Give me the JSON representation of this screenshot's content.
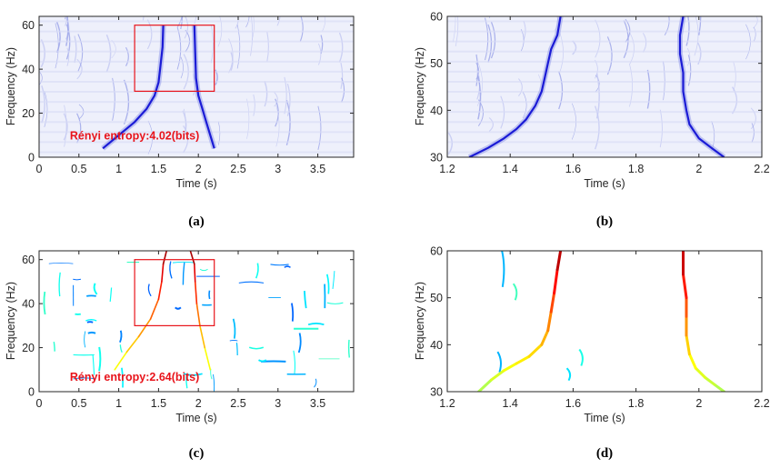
{
  "figure": {
    "captions": [
      "(a)",
      "(b)",
      "(c)",
      "(d)"
    ]
  },
  "colors": {
    "axis": "#262626",
    "highlight_box": "#e8141b",
    "annotation_text": "#e8141b",
    "ridge_blue": "#1b1bd6",
    "spectrogram_light": "#e4e7fa"
  },
  "chart_data": [
    {
      "id": "a",
      "type": "heatmap",
      "xlabel": "Time (s)",
      "ylabel": "Frequency (Hz)",
      "xlim": [
        0,
        3.95
      ],
      "ylim": [
        0,
        64
      ],
      "xticks": [
        0,
        0.5,
        1,
        1.5,
        2,
        2.5,
        3,
        3.5
      ],
      "xtick_labels": [
        "0",
        "0.5",
        "1",
        "1.5",
        "2",
        "2.5",
        "3",
        "3.5"
      ],
      "yticks": [
        0,
        20,
        40,
        60
      ],
      "ytick_labels": [
        "0",
        "20",
        "40",
        "60"
      ],
      "colormap": "white-to-blue",
      "highlight_box": {
        "x": [
          1.2,
          2.2
        ],
        "y": [
          30,
          60
        ]
      },
      "annotation": {
        "text": "Rényi entropy:4.02(bits)",
        "x": 1.2,
        "y": 8
      },
      "ridges": [
        {
          "x": [
            0.8,
            1.0,
            1.2,
            1.35,
            1.45,
            1.5,
            1.52,
            1.55,
            1.56
          ],
          "y": [
            4,
            10,
            16,
            22,
            28,
            34,
            40,
            50,
            60
          ]
        },
        {
          "x": [
            2.2,
            2.15,
            2.1,
            2.05,
            2.0,
            1.97,
            1.96,
            1.95
          ],
          "y": [
            4,
            10,
            16,
            22,
            28,
            36,
            48,
            60
          ]
        }
      ]
    },
    {
      "id": "b",
      "type": "heatmap",
      "xlabel": "Time (s)",
      "ylabel": "Frequency (Hz)",
      "xlim": [
        1.2,
        2.2
      ],
      "ylim": [
        30,
        60
      ],
      "xticks": [
        1.2,
        1.4,
        1.6,
        1.8,
        2,
        2.2
      ],
      "xtick_labels": [
        "1.2",
        "1.4",
        "1.6",
        "1.8",
        "2",
        "2.2"
      ],
      "yticks": [
        30,
        40,
        50,
        60
      ],
      "ytick_labels": [
        "30",
        "40",
        "50",
        "60"
      ],
      "colormap": "white-to-blue",
      "ridges": [
        {
          "x": [
            1.27,
            1.33,
            1.38,
            1.42,
            1.45,
            1.48,
            1.5,
            1.51,
            1.52,
            1.53,
            1.55,
            1.56
          ],
          "y": [
            30,
            32,
            34,
            36,
            38,
            41,
            44,
            47,
            50,
            53,
            56,
            60
          ]
        },
        {
          "x": [
            2.08,
            2.04,
            2.0,
            1.97,
            1.96,
            1.95,
            1.95,
            1.94,
            1.94,
            1.95
          ],
          "y": [
            30,
            32,
            34,
            37,
            40,
            44,
            48,
            52,
            56,
            60
          ]
        }
      ]
    },
    {
      "id": "c",
      "type": "heatmap",
      "xlabel": "Time (s)",
      "ylabel": "Frequency (Hz)",
      "xlim": [
        0,
        3.95
      ],
      "ylim": [
        0,
        64
      ],
      "xticks": [
        0,
        0.5,
        1,
        1.5,
        2,
        2.5,
        3,
        3.5
      ],
      "xtick_labels": [
        "0",
        "0.5",
        "1",
        "1.5",
        "2",
        "2.5",
        "3",
        "3.5"
      ],
      "yticks": [
        0,
        20,
        40,
        60
      ],
      "ytick_labels": [
        "0",
        "20",
        "40",
        "60"
      ],
      "colormap": "jet",
      "highlight_box": {
        "x": [
          1.2,
          2.2
        ],
        "y": [
          30,
          60
        ]
      },
      "annotation": {
        "text": "Rényi entropy:2.64(bits)",
        "x": 1.2,
        "y": 5
      },
      "ridges": [
        {
          "x": [
            0.95,
            1.1,
            1.25,
            1.4,
            1.5,
            1.54,
            1.56,
            1.6
          ],
          "y": [
            10,
            18,
            25,
            33,
            42,
            50,
            58,
            64
          ]
        },
        {
          "x": [
            2.15,
            2.08,
            2.02,
            1.98,
            1.96,
            1.95,
            1.9
          ],
          "y": [
            10,
            20,
            30,
            40,
            50,
            58,
            64
          ]
        }
      ]
    },
    {
      "id": "d",
      "type": "heatmap",
      "xlabel": "Time (s)",
      "ylabel": "Frequency (Hz)",
      "xlim": [
        1.2,
        2.2
      ],
      "ylim": [
        30,
        60
      ],
      "xticks": [
        1.2,
        1.4,
        1.6,
        1.8,
        2,
        2.2
      ],
      "xtick_labels": [
        "1.2",
        "1.4",
        "1.6",
        "1.8",
        "2",
        "2.2"
      ],
      "yticks": [
        30,
        40,
        50,
        60
      ],
      "ytick_labels": [
        "30",
        "40",
        "50",
        "60"
      ],
      "colormap": "jet",
      "ridges": [
        {
          "x": [
            1.3,
            1.34,
            1.38,
            1.42,
            1.46,
            1.5,
            1.52,
            1.53,
            1.54,
            1.55,
            1.56
          ],
          "y": [
            30,
            32.5,
            34.5,
            36,
            37.5,
            40,
            43,
            47,
            51,
            56,
            60
          ]
        },
        {
          "x": [
            2.08,
            2.05,
            2.02,
            1.99,
            1.97,
            1.96,
            1.96,
            1.96,
            1.95,
            1.95
          ],
          "y": [
            30,
            31.5,
            33,
            35,
            38,
            42,
            46,
            50,
            55,
            60
          ]
        }
      ]
    }
  ]
}
